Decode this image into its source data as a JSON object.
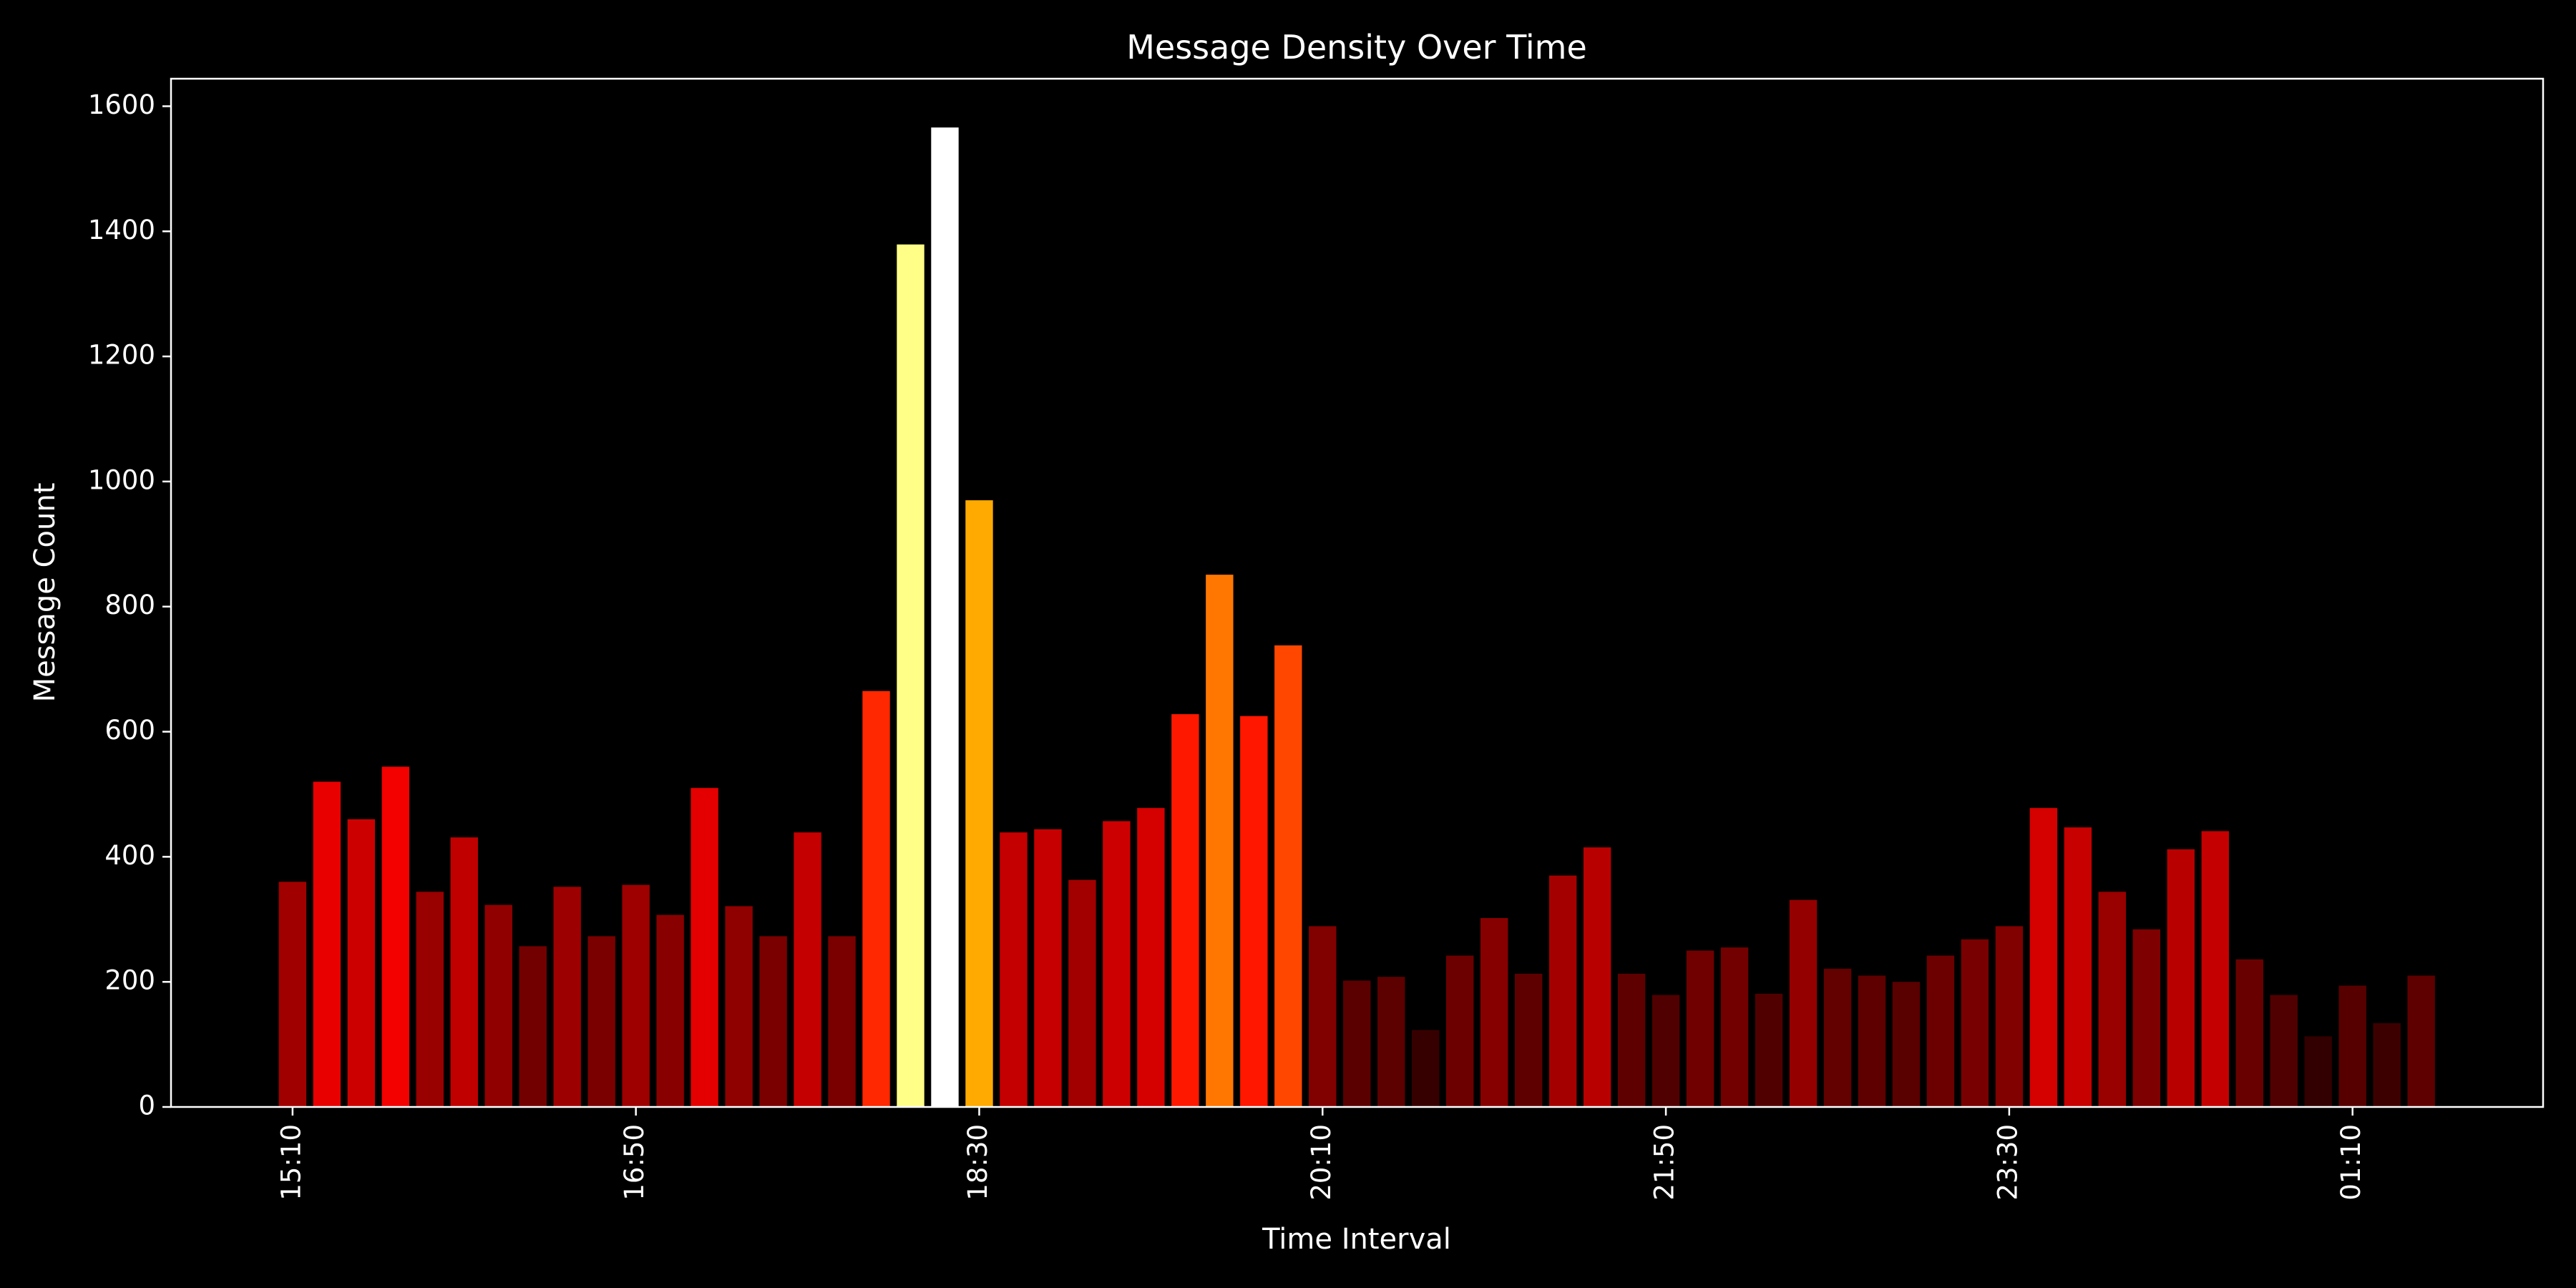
{
  "chart_data": {
    "type": "bar",
    "title": "Message Density Over Time",
    "xlabel": "Time Interval",
    "ylabel": "Message Count",
    "categories": [
      "15:10",
      null,
      null,
      null,
      null,
      null,
      null,
      null,
      null,
      null,
      "16:50",
      null,
      null,
      null,
      null,
      null,
      null,
      null,
      null,
      null,
      "18:30",
      null,
      null,
      null,
      null,
      null,
      null,
      null,
      null,
      null,
      "20:10",
      null,
      null,
      null,
      null,
      null,
      null,
      null,
      null,
      null,
      "21:50",
      null,
      null,
      null,
      null,
      null,
      null,
      null,
      null,
      null,
      "23:30",
      null,
      null,
      null,
      null,
      null,
      null,
      null,
      null,
      null,
      "01:10",
      null,
      null
    ],
    "values": [
      360,
      520,
      460,
      544,
      344,
      431,
      323,
      257,
      352,
      273,
      355,
      307,
      510,
      321,
      273,
      439,
      273,
      665,
      1379,
      1566,
      970,
      439,
      444,
      363,
      457,
      478,
      628,
      851,
      625,
      738,
      289,
      202,
      208,
      123,
      242,
      302,
      213,
      370,
      415,
      213,
      179,
      250,
      255,
      181,
      331,
      221,
      210,
      200,
      242,
      268,
      289,
      478,
      447,
      344,
      284,
      412,
      441,
      236,
      179,
      113,
      194,
      134,
      210
    ],
    "colormap": "hot",
    "ylim": [
      0,
      1644
    ],
    "yticks": [
      0,
      200,
      400,
      600,
      800,
      1000,
      1200,
      1400,
      1600
    ]
  }
}
